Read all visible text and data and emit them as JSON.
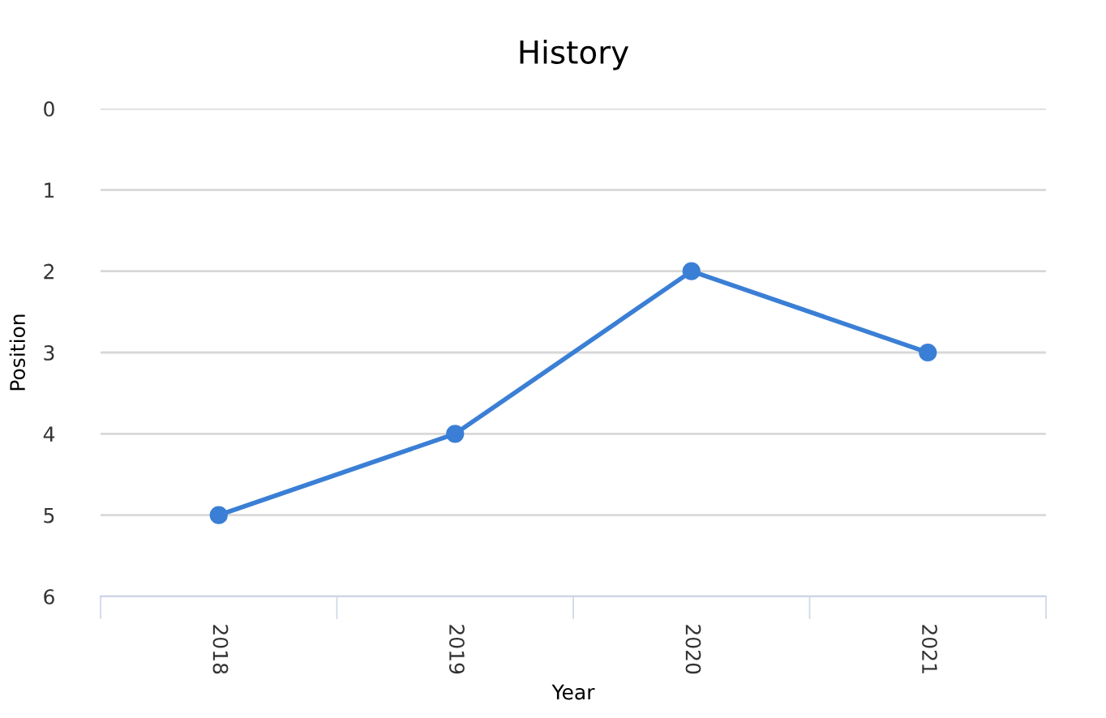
{
  "chart_data": {
    "type": "line",
    "title": "History",
    "xlabel": "Year",
    "ylabel": "Position",
    "categories": [
      "2018",
      "2019",
      "2020",
      "2021"
    ],
    "series": [
      {
        "color": "#3a7fd5",
        "values": [
          5,
          4,
          2,
          3
        ]
      }
    ],
    "ylim": [
      6,
      0
    ],
    "yticks": [
      0,
      1,
      2,
      3,
      4,
      5,
      6
    ],
    "grid": "y",
    "marker": "circle",
    "line_style": "solid",
    "legend": false
  }
}
